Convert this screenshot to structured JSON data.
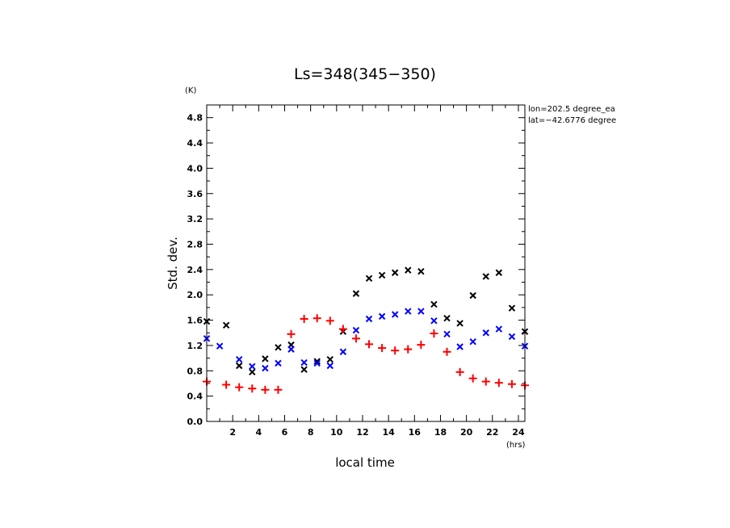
{
  "chart_data": {
    "type": "scatter",
    "title": "Ls=348(345−350)",
    "xlabel": "local time",
    "ylabel": "Std. dev.",
    "x_unit": "(hrs)",
    "y_unit": "(K)",
    "xlim": [
      0,
      24.5
    ],
    "ylim": [
      0,
      5.0
    ],
    "xticks": [
      2,
      4,
      6,
      8,
      10,
      12,
      14,
      16,
      18,
      20,
      22,
      24
    ],
    "yticks": [
      0.0,
      0.4,
      0.8,
      1.2,
      1.6,
      2.0,
      2.4,
      2.8,
      3.2,
      3.6,
      4.0,
      4.4,
      4.8
    ],
    "annotation_lines": [
      "lon=202.5 degree_ea",
      "lat=−42.6776 degree"
    ],
    "series": [
      {
        "marker": "x",
        "color": "#000000",
        "points": [
          [
            0.0,
            1.58
          ],
          [
            1.5,
            1.52
          ],
          [
            2.5,
            0.88
          ],
          [
            3.5,
            0.78
          ],
          [
            4.5,
            0.99
          ],
          [
            5.5,
            1.17
          ],
          [
            6.5,
            1.21
          ],
          [
            7.5,
            0.82
          ],
          [
            8.5,
            0.95
          ],
          [
            9.5,
            0.98
          ],
          [
            10.5,
            1.42
          ],
          [
            11.5,
            2.02
          ],
          [
            12.5,
            2.26
          ],
          [
            13.5,
            2.31
          ],
          [
            14.5,
            2.35
          ],
          [
            15.5,
            2.39
          ],
          [
            16.5,
            2.37
          ],
          [
            17.5,
            1.85
          ],
          [
            18.5,
            1.63
          ],
          [
            19.5,
            1.55
          ],
          [
            20.5,
            1.99
          ],
          [
            21.5,
            2.29
          ],
          [
            22.5,
            2.35
          ],
          [
            23.5,
            1.79
          ],
          [
            24.5,
            1.42
          ]
        ]
      },
      {
        "marker": "x",
        "color": "#0000ff",
        "points": [
          [
            0.0,
            1.31
          ],
          [
            1.0,
            1.19
          ],
          [
            2.5,
            0.98
          ],
          [
            3.5,
            0.87
          ],
          [
            4.5,
            0.84
          ],
          [
            5.5,
            0.92
          ],
          [
            6.5,
            1.14
          ],
          [
            7.5,
            0.93
          ],
          [
            8.5,
            0.92
          ],
          [
            9.5,
            0.88
          ],
          [
            10.5,
            1.1
          ],
          [
            11.5,
            1.44
          ],
          [
            12.5,
            1.62
          ],
          [
            13.5,
            1.66
          ],
          [
            14.5,
            1.69
          ],
          [
            15.5,
            1.74
          ],
          [
            16.5,
            1.74
          ],
          [
            17.5,
            1.59
          ],
          [
            18.5,
            1.38
          ],
          [
            19.5,
            1.18
          ],
          [
            20.5,
            1.26
          ],
          [
            21.5,
            1.4
          ],
          [
            22.5,
            1.46
          ],
          [
            23.5,
            1.34
          ],
          [
            24.5,
            1.19
          ]
        ]
      },
      {
        "marker": "+",
        "color": "#ff0000",
        "points": [
          [
            0.0,
            0.63
          ],
          [
            1.5,
            0.58
          ],
          [
            2.5,
            0.54
          ],
          [
            3.5,
            0.52
          ],
          [
            4.5,
            0.5
          ],
          [
            5.5,
            0.5
          ],
          [
            6.5,
            1.38
          ],
          [
            7.5,
            1.62
          ],
          [
            8.5,
            1.63
          ],
          [
            9.5,
            1.59
          ],
          [
            10.5,
            1.46
          ],
          [
            11.5,
            1.31
          ],
          [
            12.5,
            1.22
          ],
          [
            13.5,
            1.16
          ],
          [
            14.5,
            1.12
          ],
          [
            15.5,
            1.14
          ],
          [
            16.5,
            1.21
          ],
          [
            17.5,
            1.39
          ],
          [
            18.5,
            1.1
          ],
          [
            19.5,
            0.78
          ],
          [
            20.5,
            0.68
          ],
          [
            21.5,
            0.63
          ],
          [
            22.5,
            0.61
          ],
          [
            23.5,
            0.59
          ],
          [
            24.5,
            0.57
          ]
        ]
      }
    ]
  }
}
